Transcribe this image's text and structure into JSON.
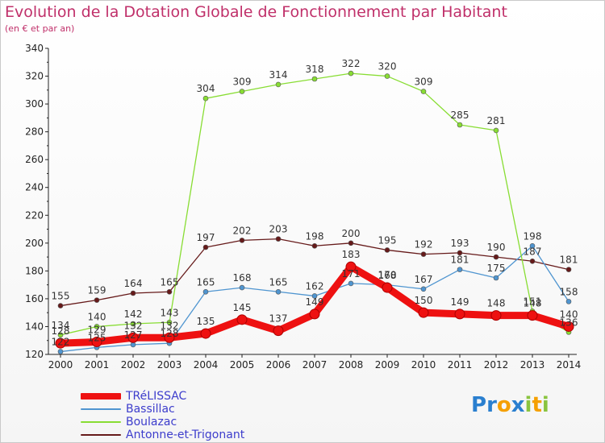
{
  "chart_data": {
    "type": "line",
    "title": "Evolution de la Dotation Globale de Fonctionnement par Habitant",
    "subtitle": "(en € et par an)",
    "x": [
      "2000",
      "2001",
      "2002",
      "2003",
      "2004",
      "2005",
      "2006",
      "2007",
      "2008",
      "2009",
      "2010",
      "2011",
      "2012",
      "2013",
      "2014"
    ],
    "ylim": [
      120,
      340
    ],
    "yticks": [
      120,
      140,
      160,
      180,
      200,
      220,
      240,
      260,
      280,
      300,
      320,
      340
    ],
    "grid": false,
    "legend_position": "bottom-left",
    "series": [
      {
        "name": "TRéLISSAC",
        "color": "#ee1111",
        "values": [
          128,
          129,
          132,
          132,
          135,
          145,
          137,
          149,
          183,
          168,
          150,
          149,
          148,
          148,
          140
        ]
      },
      {
        "name": "Bassillac",
        "color": "#4f95d0",
        "values": [
          122,
          125,
          127,
          128,
          165,
          168,
          165,
          162,
          171,
          170,
          167,
          181,
          175,
          198,
          158
        ]
      },
      {
        "name": "Boulazac",
        "color": "#88dd33",
        "values": [
          134,
          140,
          142,
          143,
          304,
          309,
          314,
          318,
          322,
          320,
          309,
          285,
          281,
          151,
          136
        ]
      },
      {
        "name": "Antonne-et-Trigonant",
        "color": "#661a1a",
        "values": [
          155,
          159,
          164,
          165,
          197,
          202,
          203,
          198,
          200,
          195,
          192,
          193,
          190,
          187,
          181
        ]
      }
    ]
  },
  "logo": {
    "letters": [
      "P",
      "r",
      "o",
      "x",
      "i",
      "t",
      "i"
    ],
    "colors": [
      "#2a7fcf",
      "#2a7fcf",
      "#f5a000",
      "#2a7fcf",
      "#8ac43f",
      "#f5a000",
      "#8ac43f"
    ]
  }
}
